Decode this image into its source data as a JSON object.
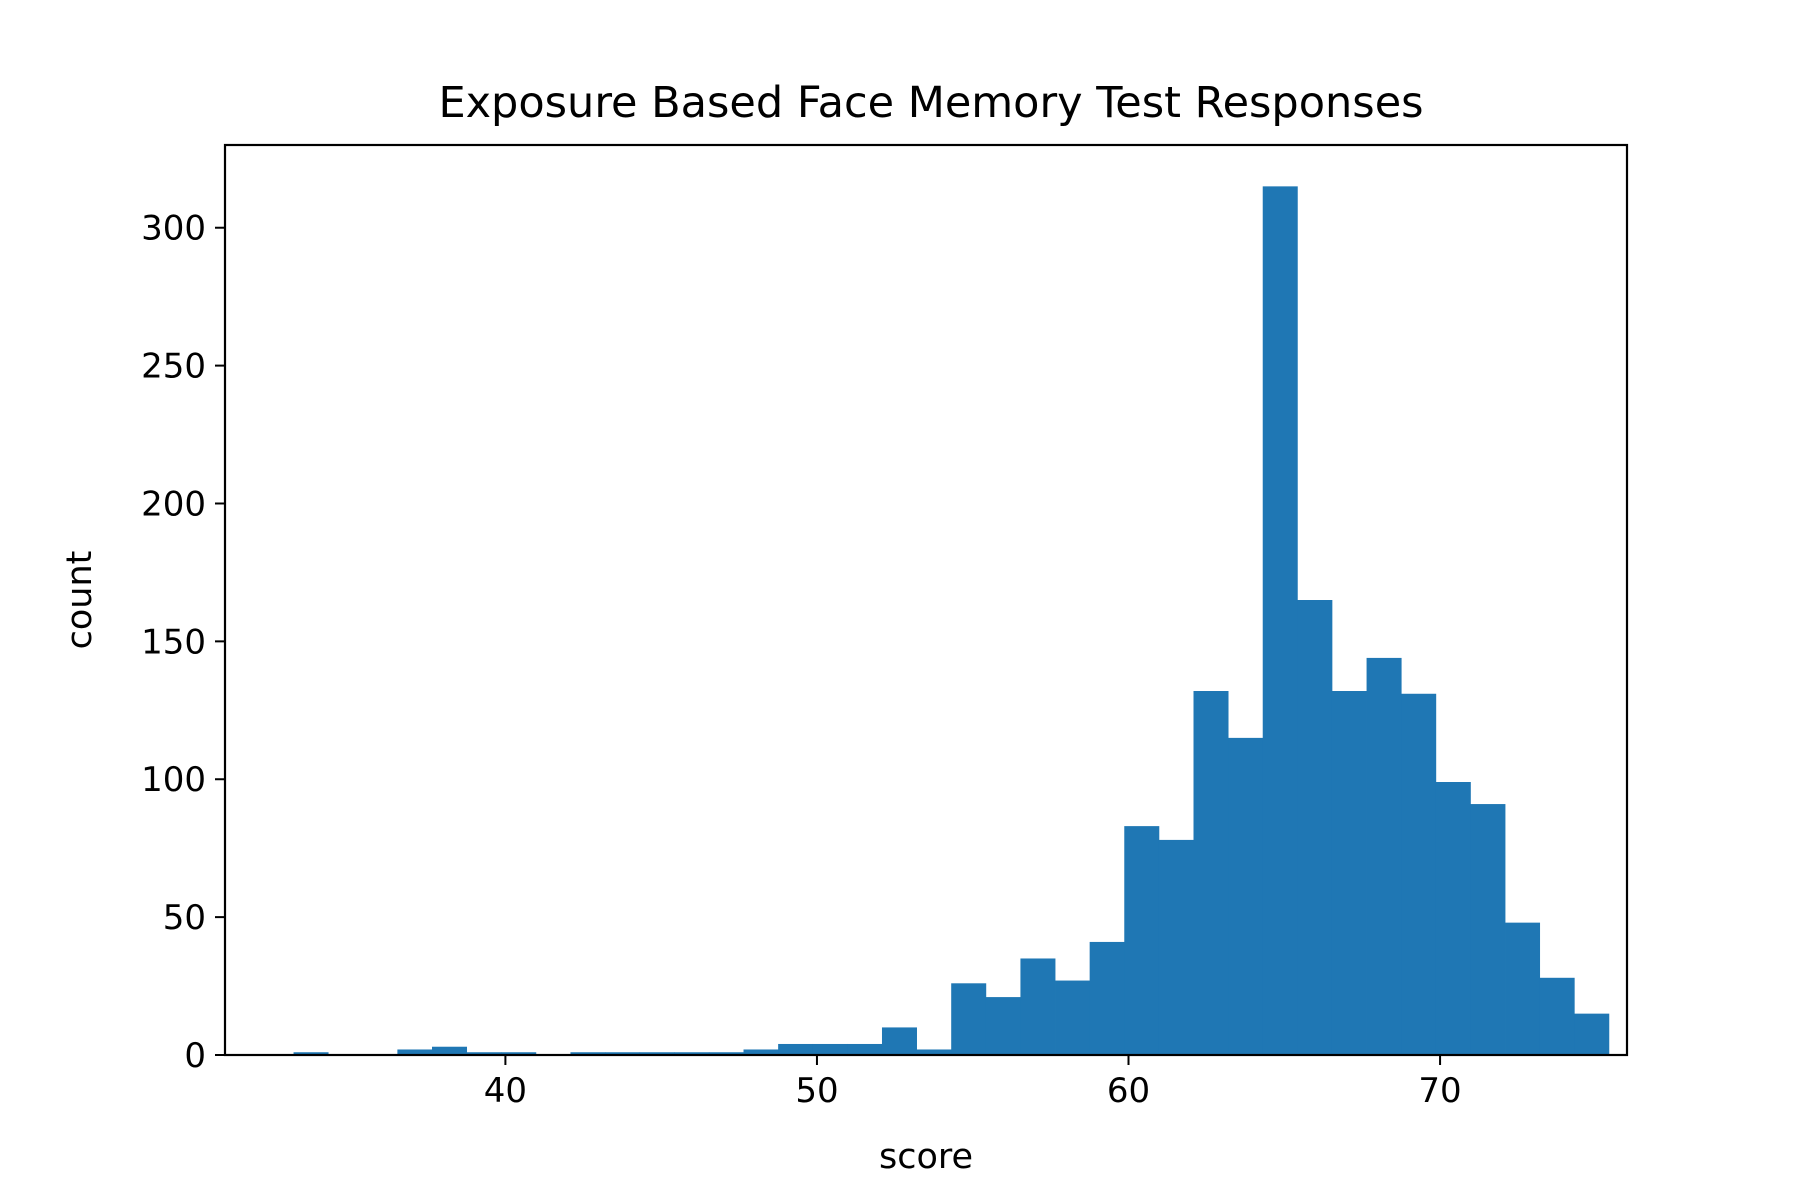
{
  "chart_data": {
    "type": "bar",
    "subtype": "histogram",
    "title": "Exposure Based Face Memory Test Responses",
    "xlabel": "score",
    "ylabel": "count",
    "xlim": [
      31.0,
      76.0
    ],
    "ylim": [
      0,
      330
    ],
    "xticks": [
      40,
      50,
      60,
      70
    ],
    "yticks": [
      0,
      50,
      100,
      150,
      200,
      250,
      300
    ],
    "bin_start": 33.2,
    "bin_width": 1.111,
    "values": [
      1,
      0,
      0,
      2,
      3,
      1,
      1,
      0,
      1,
      1,
      1,
      1,
      1,
      2,
      4,
      4,
      4,
      10,
      2,
      26,
      21,
      35,
      27,
      41,
      83,
      78,
      132,
      115,
      315,
      165,
      132,
      144,
      131,
      99,
      91,
      48,
      28,
      15
    ],
    "bar_color": "#1f77b4",
    "grid": false,
    "legend": "none"
  }
}
